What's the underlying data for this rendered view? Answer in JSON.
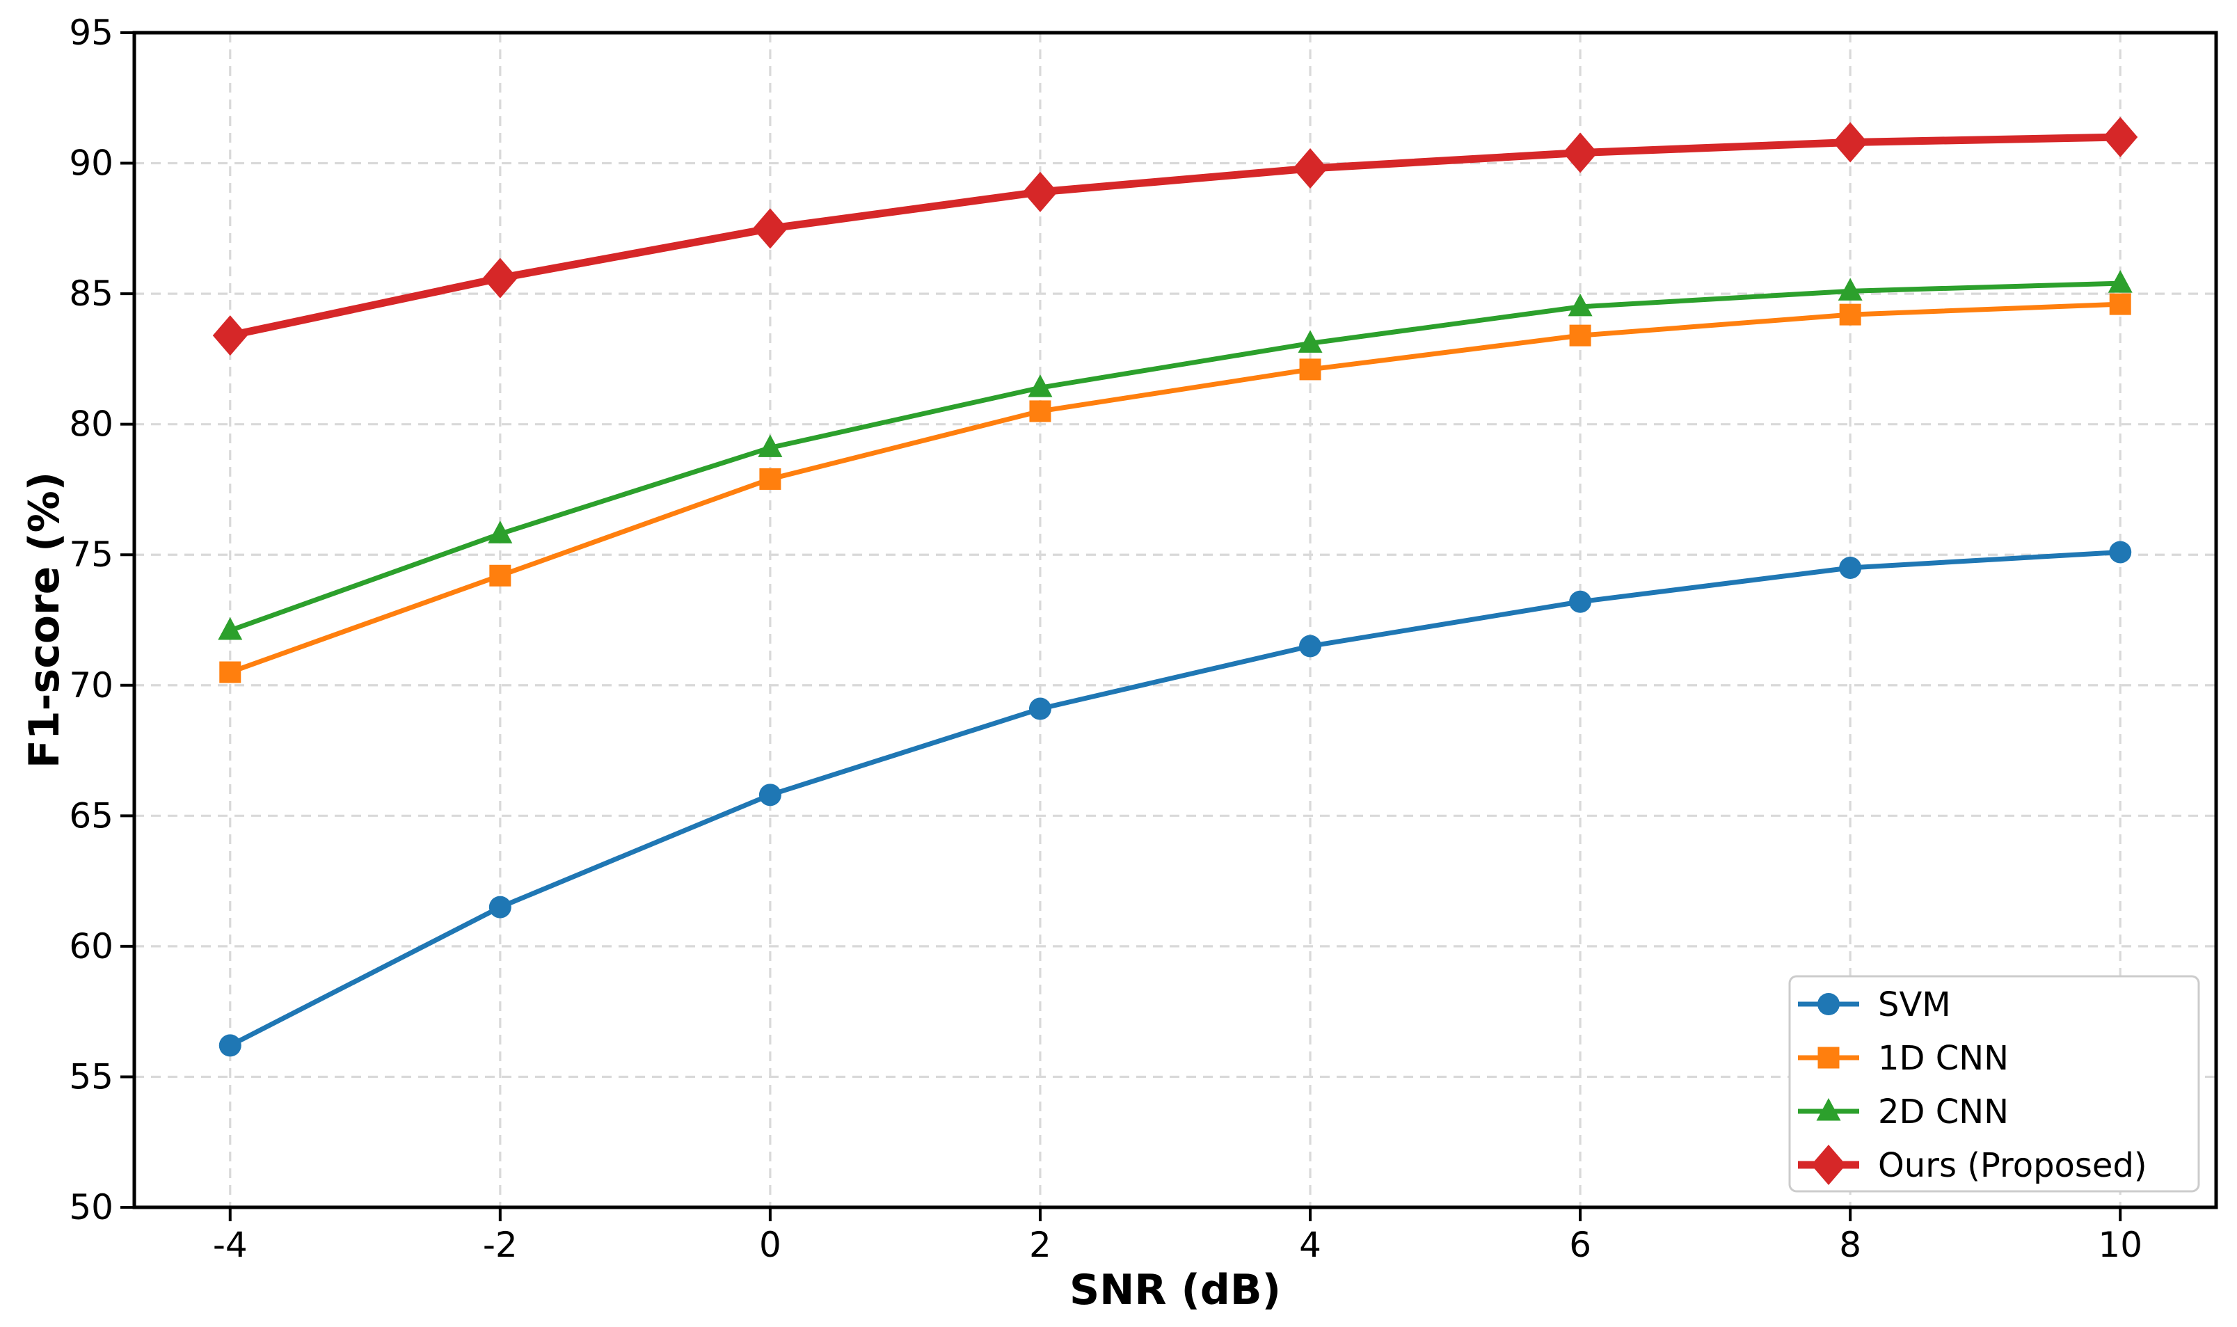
{
  "figure": {
    "background": "#ffffff",
    "text_color": "#000000",
    "grid_color": "#d9d9d9",
    "spine_color": "#000000",
    "legend_border_color": "#cccccc"
  },
  "chart_data": {
    "type": "line",
    "title": "",
    "xlabel": "SNR (dB)",
    "ylabel": "F1-score (%)",
    "x": [
      -4,
      -2,
      0,
      2,
      4,
      6,
      8,
      10
    ],
    "xlim": [
      -4.71,
      10.71
    ],
    "ylim": [
      50,
      95
    ],
    "xticks": [
      -4,
      -2,
      0,
      2,
      4,
      6,
      8,
      10
    ],
    "xtick_labels": [
      "-4",
      "-2",
      "0",
      "2",
      "4",
      "6",
      "8",
      "10"
    ],
    "yticks": [
      50,
      55,
      60,
      65,
      70,
      75,
      80,
      85,
      90,
      95
    ],
    "ytick_labels": [
      "50",
      "55",
      "60",
      "65",
      "70",
      "75",
      "80",
      "85",
      "90",
      "95"
    ],
    "grid": true,
    "grid_style": "dashed",
    "legend_position": "lower right",
    "series": [
      {
        "name": "SVM",
        "color": "#1f77b4",
        "marker": "circle",
        "line_width": 7,
        "values": [
          56.2,
          61.5,
          65.8,
          69.1,
          71.5,
          73.2,
          74.5,
          75.1
        ]
      },
      {
        "name": "1D CNN",
        "color": "#ff7f0e",
        "marker": "square",
        "line_width": 7,
        "values": [
          70.5,
          74.2,
          77.9,
          80.5,
          82.1,
          83.4,
          84.2,
          84.6
        ]
      },
      {
        "name": "2D CNN",
        "color": "#2ca02c",
        "marker": "triangle",
        "line_width": 7,
        "values": [
          72.1,
          75.8,
          79.1,
          81.4,
          83.1,
          84.5,
          85.1,
          85.4
        ]
      },
      {
        "name": "Ours (Proposed)",
        "color": "#d62728",
        "marker": "diamond",
        "line_width": 11,
        "values": [
          83.4,
          85.6,
          87.5,
          88.9,
          89.8,
          90.4,
          90.8,
          91.0
        ]
      }
    ]
  }
}
